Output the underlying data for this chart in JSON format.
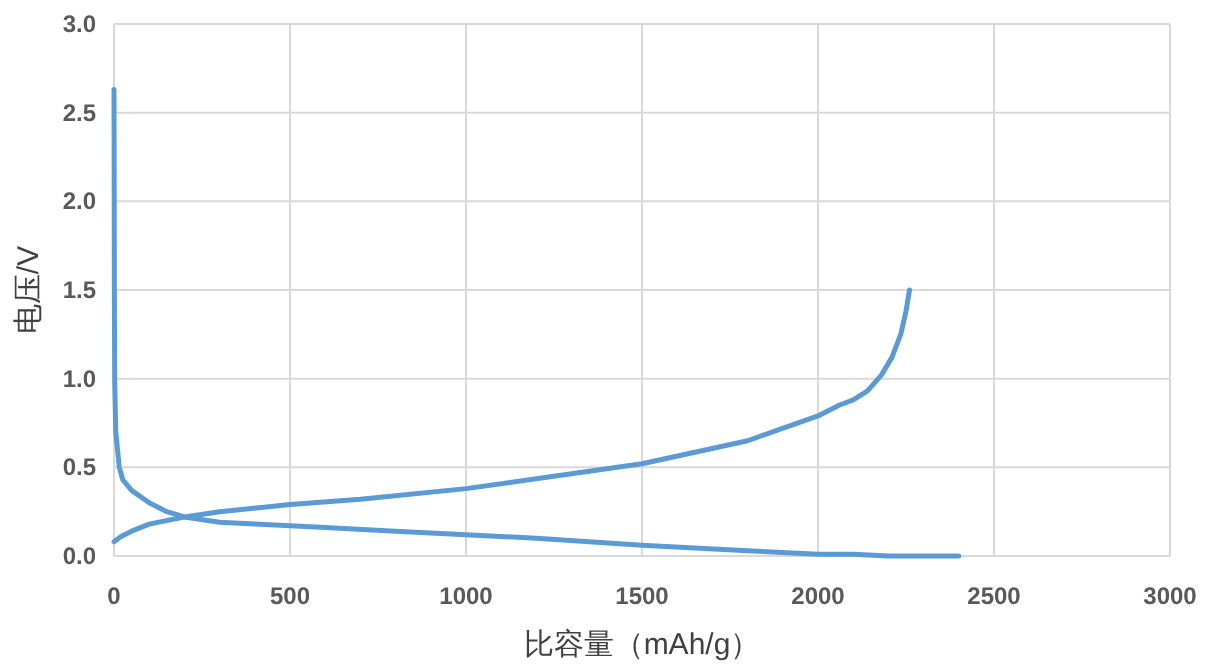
{
  "chart_data": {
    "type": "line",
    "xlabel": "比容量（mAh/g）",
    "ylabel": "电压/V",
    "xlim": [
      0,
      3000
    ],
    "xticks": [
      0,
      500,
      1000,
      1500,
      2000,
      2500,
      3000
    ],
    "ylim": [
      0,
      3
    ],
    "yticks": [
      {
        "value": 0,
        "label": "0.0"
      },
      {
        "value": 0.5,
        "label": "0.5"
      },
      {
        "value": 1,
        "label": "1.0"
      },
      {
        "value": 1.5,
        "label": "1.5"
      },
      {
        "value": 2,
        "label": "2.0"
      },
      {
        "value": 2.5,
        "label": "2.5"
      },
      {
        "value": 3,
        "label": "3.0"
      }
    ],
    "grid": true,
    "marker": "none",
    "line_style": "solid",
    "series": [
      {
        "color": "#5b9bd5",
        "x": [
          0,
          1,
          2,
          5,
          10,
          15,
          25,
          50,
          100,
          150,
          200,
          300,
          400,
          600,
          800,
          1000,
          1200,
          1500,
          1800,
          2000,
          2100,
          2200,
          2400
        ],
        "values": [
          2.63,
          1.5,
          0.98,
          0.7,
          0.6,
          0.5,
          0.43,
          0.37,
          0.3,
          0.25,
          0.22,
          0.19,
          0.18,
          0.16,
          0.14,
          0.12,
          0.1,
          0.06,
          0.03,
          0.01,
          0.01,
          0.0,
          0.0
        ]
      },
      {
        "color": "#5b9bd5",
        "x": [
          0,
          20,
          50,
          100,
          200,
          300,
          500,
          700,
          1000,
          1500,
          1800,
          2000,
          2060,
          2100,
          2140,
          2180,
          2210,
          2235,
          2250,
          2260
        ],
        "values": [
          0.08,
          0.11,
          0.14,
          0.18,
          0.22,
          0.25,
          0.29,
          0.32,
          0.38,
          0.52,
          0.65,
          0.79,
          0.85,
          0.88,
          0.93,
          1.02,
          1.12,
          1.25,
          1.38,
          1.5
        ]
      }
    ]
  }
}
